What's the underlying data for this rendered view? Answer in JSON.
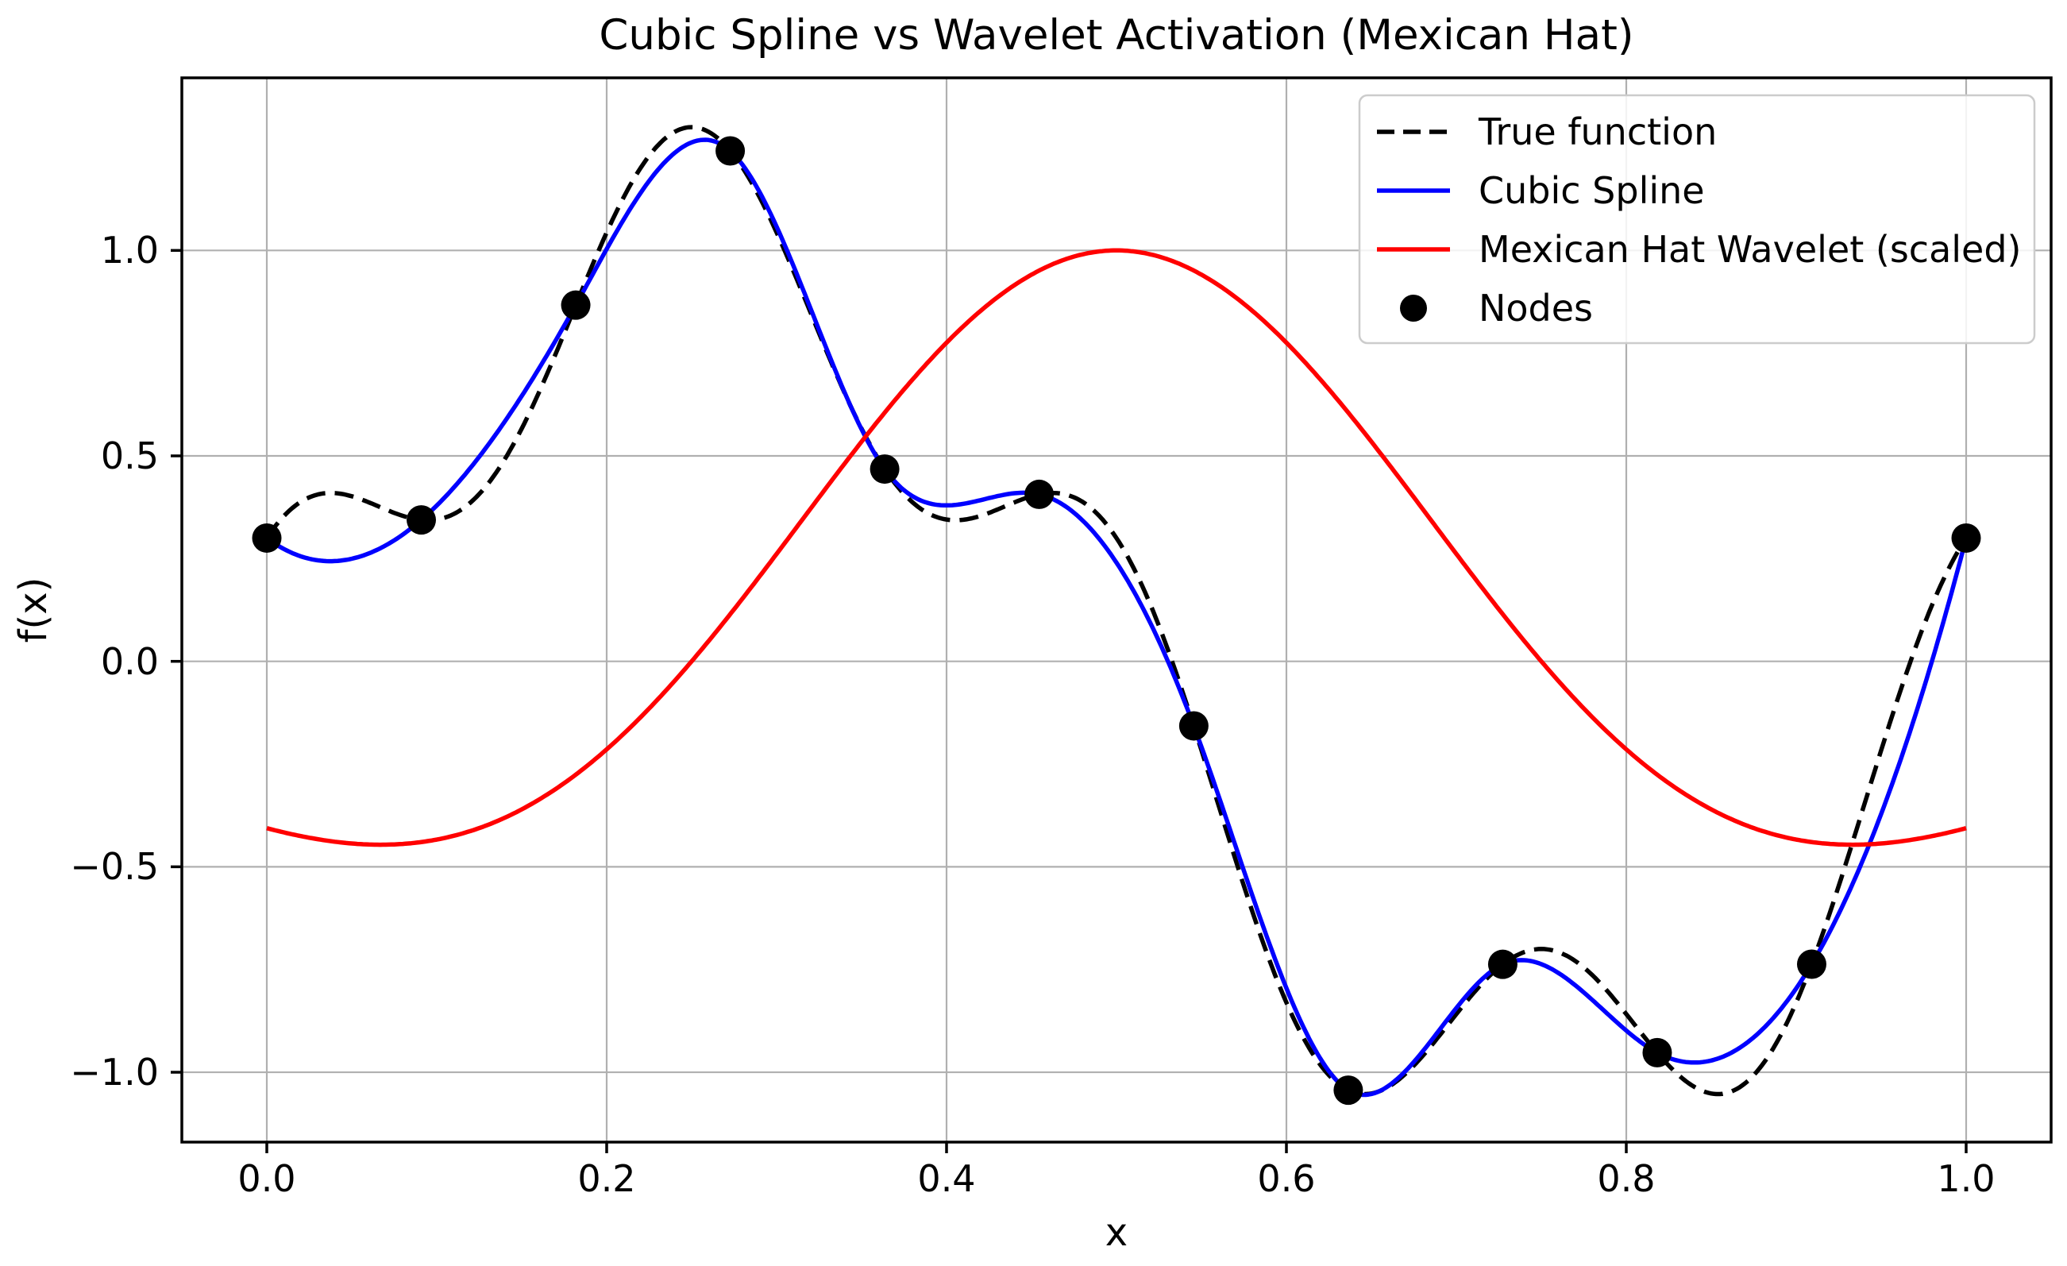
{
  "chart_data": {
    "type": "line",
    "title": "Cubic Spline vs Wavelet Activation (Mexican Hat)",
    "xlabel": "x",
    "ylabel": "f(x)",
    "xlim": [
      -0.05,
      1.05
    ],
    "ylim": [
      -1.17,
      1.42
    ],
    "xticks": [
      0.0,
      0.2,
      0.4,
      0.6,
      0.8,
      1.0
    ],
    "yticks": [
      1.0,
      0.5,
      0.0,
      -0.5,
      -1.0
    ],
    "xtick_labels": [
      "0.0",
      "0.2",
      "0.4",
      "0.6",
      "0.8",
      "1.0"
    ],
    "ytick_labels": [
      "1.0",
      "0.5",
      "0.0",
      "−0.5",
      "−1.0"
    ],
    "grid": true,
    "grid_color": "#b0b0b0",
    "background_color": "#ffffff",
    "spine_color": "#000000",
    "series": [
      {
        "name": "True function",
        "color": "#000000",
        "linestyle": "dashed",
        "linewidth": 2,
        "formula": "sin(2*PI*x) + 0.3*cos(8*PI*x)",
        "x_range": [
          0,
          1
        ]
      },
      {
        "name": "Cubic Spline",
        "color": "#0000ff",
        "linestyle": "solid",
        "linewidth": 2,
        "interpolation": "cubic-spline-not-a-knot",
        "through": "nodes",
        "x_range": [
          0,
          1
        ]
      },
      {
        "name": "Mexican Hat Wavelet (scaled)",
        "color": "#ff0000",
        "linestyle": "solid",
        "linewidth": 2,
        "formula": "(1 - pow((x-0.5)/0.25,2)) * exp(-pow((x-0.5)/0.25,2)/2)",
        "x_range": [
          0,
          1
        ]
      }
    ],
    "nodes": {
      "name": "Nodes",
      "marker": "circle",
      "color": "#000000",
      "x": [
        0.0,
        0.0909,
        0.1818,
        0.2727,
        0.3636,
        0.4545,
        0.5455,
        0.6364,
        0.7273,
        0.8182,
        0.9091,
        1.0
      ],
      "y": [
        0.3,
        0.3441,
        0.8669,
        1.2422,
        0.4679,
        0.4064,
        -0.1571,
        -1.0436,
        -0.7374,
        -0.9523,
        -0.7371,
        0.3
      ]
    },
    "legend": {
      "location": "upper right",
      "edge_color": "#cccccc",
      "entries": [
        {
          "label": "True function",
          "type": "line",
          "color": "#000000",
          "dashed": true
        },
        {
          "label": "Cubic Spline",
          "type": "line",
          "color": "#0000ff",
          "dashed": false
        },
        {
          "label": "Mexican Hat Wavelet (scaled)",
          "type": "line",
          "color": "#ff0000",
          "dashed": false
        },
        {
          "label": "Nodes",
          "type": "marker",
          "color": "#000000"
        }
      ]
    }
  }
}
